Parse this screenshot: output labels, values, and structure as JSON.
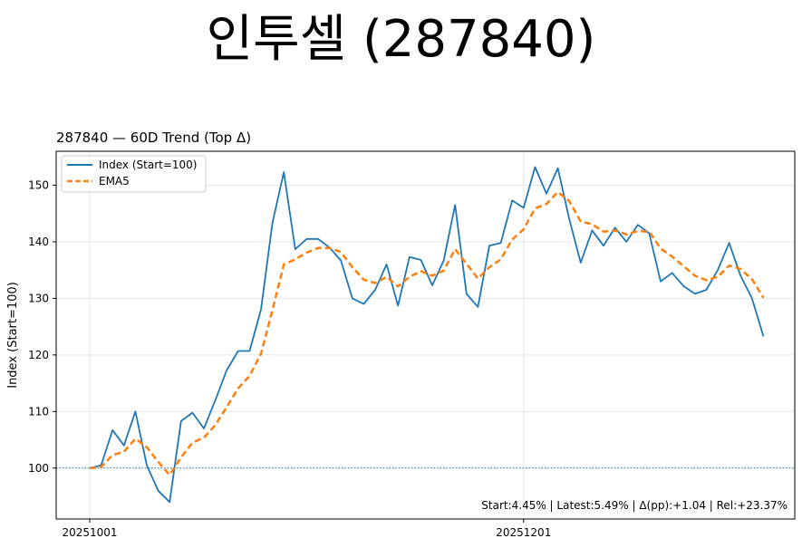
{
  "page_title": "인투셀 (287840)",
  "chart_data": {
    "type": "line",
    "title": "287840 — 60D Trend (Top Δ)",
    "xlabel": "",
    "ylabel": "Index (Start=100)",
    "ylim": [
      91,
      156
    ],
    "yticks": [
      100,
      110,
      120,
      130,
      140,
      150
    ],
    "xticks": [
      {
        "index": 0,
        "label": "20251001"
      },
      {
        "index": 38,
        "label": "20251201"
      }
    ],
    "reference_line": 100,
    "grid": true,
    "legend_position": "top-left",
    "annotation": "Start:4.45% | Latest:5.49% | Δ(pp):+1.04 | Rel:+23.37%",
    "series": [
      {
        "name": "Index (Start=100)",
        "color": "#1f77b4",
        "style": "solid",
        "values": [
          100.0,
          100.5,
          106.7,
          104.0,
          110.0,
          100.5,
          96.0,
          94.0,
          108.3,
          109.8,
          107.0,
          112.0,
          117.3,
          120.7,
          120.7,
          128.0,
          143.3,
          152.3,
          138.7,
          140.5,
          140.5,
          139.0,
          136.7,
          130.0,
          129.0,
          131.5,
          136.0,
          128.7,
          137.3,
          136.8,
          132.3,
          136.7,
          146.5,
          130.8,
          128.5,
          139.3,
          139.8,
          147.3,
          146.0,
          153.2,
          148.5,
          153.0,
          144.0,
          136.3,
          142.0,
          139.3,
          142.5,
          140.0,
          143.0,
          141.5,
          133.0,
          134.5,
          132.2,
          130.8,
          131.5,
          135.0,
          139.8,
          134.0,
          130.0,
          123.3
        ]
      },
      {
        "name": "EMA5",
        "color": "#ff7f0e",
        "style": "dashed",
        "values": [
          100.0,
          100.2,
          102.3,
          102.9,
          105.2,
          103.7,
          101.1,
          98.8,
          101.9,
          104.5,
          105.4,
          107.6,
          110.8,
          114.1,
          116.3,
          120.2,
          127.9,
          136.0,
          136.9,
          138.1,
          138.9,
          138.9,
          138.2,
          135.5,
          133.3,
          132.7,
          133.8,
          132.1,
          133.8,
          134.8,
          134.0,
          134.9,
          138.7,
          136.1,
          133.5,
          135.5,
          136.9,
          140.4,
          142.2,
          145.9,
          146.7,
          148.8,
          147.2,
          143.6,
          143.1,
          141.8,
          142.0,
          141.3,
          141.9,
          141.8,
          138.8,
          137.4,
          135.7,
          134.0,
          133.2,
          133.8,
          135.8,
          135.2,
          133.4,
          130.1
        ]
      }
    ]
  }
}
